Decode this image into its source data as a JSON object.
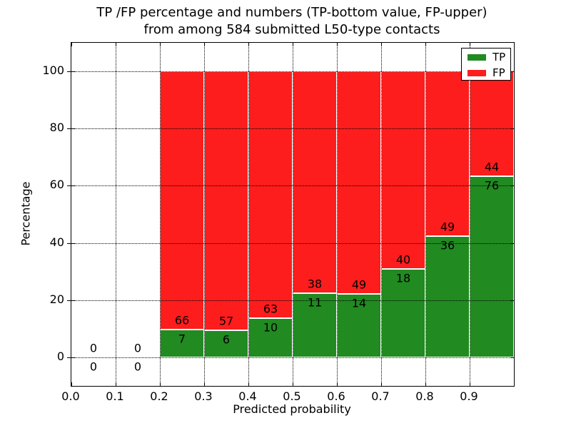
{
  "figure": {
    "title_line1": "TP /FP percentage and numbers (TP-bottom value, FP-upper)",
    "title_line2": "from among 584 submitted L50-type contacts"
  },
  "axes": {
    "xlabel": "Predicted probability",
    "ylabel": "Percentage"
  },
  "legend": {
    "items": [
      {
        "label": "TP",
        "color": "#218a21"
      },
      {
        "label": "FP",
        "color": "#fd1d1d"
      }
    ]
  },
  "chart_data": {
    "type": "bar",
    "stacked": true,
    "title": "TP /FP percentage and numbers (TP-bottom value, FP-upper) from among 584 submitted L50-type contacts",
    "xlabel": "Predicted probability",
    "ylabel": "Percentage",
    "total_contacts": 584,
    "xlim": [
      0.0,
      1.0
    ],
    "ylim": [
      -10,
      110
    ],
    "grid": "dotted",
    "legend_position": "upper right",
    "bin_width": 0.1,
    "bin_edges": [
      0.0,
      0.1,
      0.2,
      0.3,
      0.4,
      0.5,
      0.6,
      0.7,
      0.8,
      0.9,
      1.0
    ],
    "categories": [
      "0.0-0.1",
      "0.1-0.2",
      "0.2-0.3",
      "0.3-0.4",
      "0.4-0.5",
      "0.5-0.6",
      "0.6-0.7",
      "0.7-0.8",
      "0.8-0.9",
      "0.9-1.0"
    ],
    "x_ticks": [
      0.0,
      0.1,
      0.2,
      0.3,
      0.4,
      0.5,
      0.6,
      0.7,
      0.8,
      0.9
    ],
    "x_tick_labels": [
      "0.0",
      "0.1",
      "0.2",
      "0.3",
      "0.4",
      "0.5",
      "0.6",
      "0.7",
      "0.8",
      "0.9"
    ],
    "y_ticks": [
      0,
      20,
      40,
      60,
      80,
      100
    ],
    "y_tick_labels": [
      "0",
      "20",
      "40",
      "60",
      "80",
      "100"
    ],
    "series": [
      {
        "name": "TP",
        "color": "#218a21",
        "counts": [
          0,
          0,
          7,
          6,
          10,
          11,
          14,
          18,
          36,
          76
        ],
        "percentages": [
          0,
          0,
          9.59,
          9.52,
          13.7,
          22.45,
          22.22,
          31.03,
          42.35,
          63.33
        ]
      },
      {
        "name": "FP",
        "color": "#fd1d1d",
        "counts": [
          0,
          0,
          66,
          57,
          63,
          38,
          49,
          40,
          49,
          44
        ],
        "percentages": [
          0,
          0,
          90.41,
          90.48,
          86.3,
          77.55,
          77.78,
          68.97,
          57.65,
          36.67
        ]
      }
    ]
  }
}
